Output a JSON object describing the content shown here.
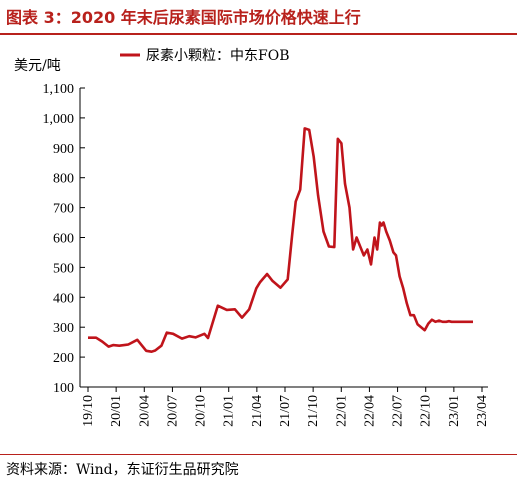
{
  "title": "图表 3：2020 年末后尿素国际市场价格快速上行",
  "source": "资料来源：Wind，东证衍生品研究院",
  "colors": {
    "accent": "#b8211c",
    "series": "#c0141b",
    "axis": "#000000"
  },
  "chart_data": {
    "type": "line",
    "ylabel": "美元/吨",
    "ylim": [
      100,
      1100
    ],
    "yticks": [
      "100",
      "200",
      "300",
      "400",
      "500",
      "600",
      "700",
      "800",
      "900",
      "1,000",
      "1,100"
    ],
    "xlabels": [
      "19/10",
      "20/01",
      "20/04",
      "20/07",
      "20/10",
      "21/01",
      "21/04",
      "21/07",
      "21/10",
      "22/01",
      "22/04",
      "22/07",
      "22/10",
      "23/01",
      "23/04"
    ],
    "xlim": [
      0,
      44
    ],
    "legend_position": "top",
    "series": [
      {
        "name": "尿素小颗粒：中东FOB",
        "x": [
          0,
          0.9,
          1.6,
          2.3,
          2.8,
          3.5,
          4.5,
          5.5,
          6.5,
          7.1,
          7.5,
          8.2,
          8.8,
          9.5,
          10.5,
          11.3,
          12,
          13,
          13.4,
          14.5,
          15.5,
          16.4,
          17.2,
          18,
          18.8,
          19.2,
          20,
          20.6,
          21.5,
          22.3,
          22.8,
          23.2,
          23.7,
          24.2,
          24.7,
          25.2,
          25.7,
          26.3,
          26.9,
          27.5,
          27.9,
          28.3,
          28.7,
          29.2,
          29.6,
          30,
          30.4,
          30.8,
          31.2,
          31.6,
          32,
          32.3,
          32.6,
          32.8,
          33,
          33.3,
          33.7,
          34.1,
          34.4,
          34.8,
          35.2,
          35.6,
          36,
          36.4,
          36.8,
          37.2,
          37.6,
          38,
          38.4,
          38.8,
          39.2,
          39.6,
          40,
          40.3,
          40.6,
          41,
          41.4,
          41.8,
          42.1,
          42.4,
          42.6,
          43
        ],
        "values": [
          265,
          265,
          252,
          235,
          240,
          238,
          242,
          258,
          221,
          218,
          222,
          238,
          282,
          278,
          262,
          270,
          266,
          278,
          264,
          372,
          358,
          360,
          332,
          360,
          430,
          450,
          478,
          455,
          432,
          460,
          610,
          720,
          760,
          965,
          960,
          870,
          740,
          620,
          570,
          568,
          930,
          915,
          780,
          700,
          560,
          600,
          570,
          540,
          560,
          510,
          600,
          560,
          650,
          640,
          650,
          620,
          590,
          550,
          540,
          470,
          430,
          380,
          340,
          340,
          310,
          300,
          290,
          312,
          325,
          318,
          322,
          318,
          318,
          320,
          318,
          318,
          318,
          318,
          318,
          318,
          318,
          318
        ]
      }
    ]
  }
}
